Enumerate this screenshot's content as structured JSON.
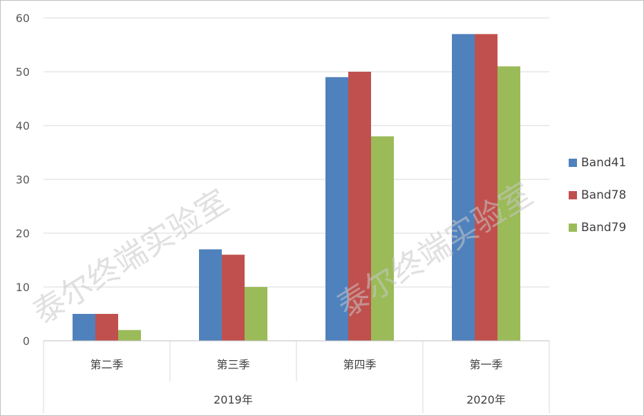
{
  "chart_data": {
    "type": "bar",
    "categories": [
      "第二季",
      "第三季",
      "第四季",
      "第一季"
    ],
    "groups": [
      {
        "label": "2019年",
        "span": 3
      },
      {
        "label": "2020年",
        "span": 1
      }
    ],
    "series": [
      {
        "name": "Band41",
        "color": "#4f81bd",
        "values": [
          5,
          17,
          49,
          57
        ]
      },
      {
        "name": "Band78",
        "color": "#c0504d",
        "values": [
          5,
          16,
          50,
          57
        ]
      },
      {
        "name": "Band79",
        "color": "#9bbb59",
        "values": [
          2,
          10,
          38,
          51
        ]
      }
    ],
    "ylim": [
      0,
      60
    ],
    "yticks": [
      0,
      10,
      20,
      30,
      40,
      50,
      60
    ],
    "grid": true,
    "legend": "right"
  },
  "watermark": "泰尔终端实验室"
}
